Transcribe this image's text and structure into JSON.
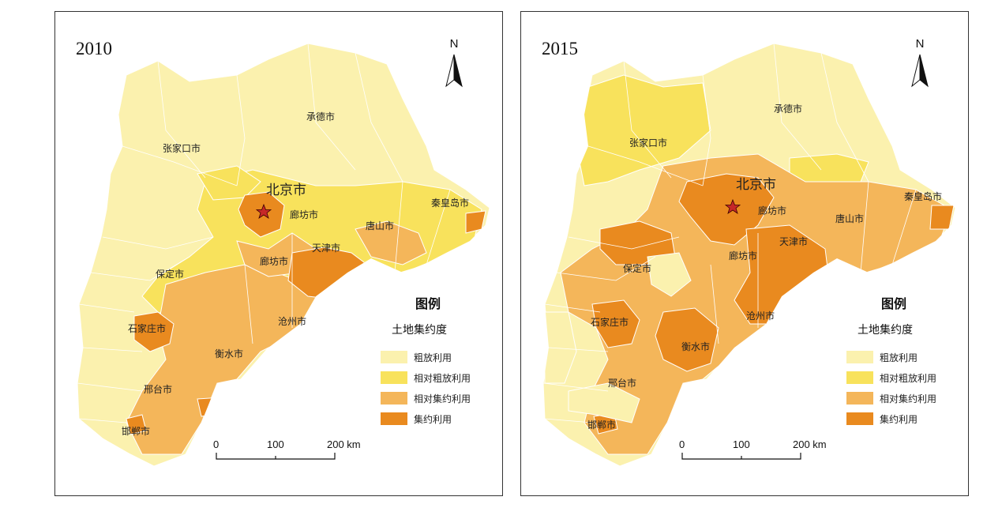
{
  "colors": {
    "extensive": "#FBF1AE",
    "rel_extensive": "#F8E25C",
    "rel_intensive": "#F4B65A",
    "intensive": "#E98A1F",
    "border": "#ffffff",
    "frame": "#333333"
  },
  "legend": {
    "title": "图例",
    "subtitle": "土地集约度",
    "items": [
      {
        "label": "粗放利用",
        "color": "#FBF1AE"
      },
      {
        "label": "相对粗放利用",
        "color": "#F8E25C"
      },
      {
        "label": "相对集约利用",
        "color": "#F4B65A"
      },
      {
        "label": "集约利用",
        "color": "#E98A1F"
      }
    ]
  },
  "scale": {
    "ticks": [
      "0",
      "100",
      "200 km"
    ]
  },
  "north_label": "N",
  "panels": [
    {
      "year": "2010",
      "cities": {
        "chengde": "承德市",
        "zhangjiakou": "张家口市",
        "beijing": "北京市",
        "langfang_north": "廊坊市",
        "qinhuangdao": "秦皇岛市",
        "tangshan": "唐山市",
        "tianjin": "天津市",
        "langfang_south": "廊坊市",
        "baoding": "保定市",
        "shijiazhuang": "石家庄市",
        "cangzhou": "沧州市",
        "hengshui": "衡水市",
        "xingtai": "邢台市",
        "handan": "邯郸市"
      }
    },
    {
      "year": "2015",
      "cities": {
        "chengde": "承德市",
        "zhangjiakou": "张家口市",
        "beijing": "北京市",
        "langfang_north": "廊坊市",
        "qinhuangdao": "秦皇岛市",
        "tangshan": "唐山市",
        "tianjin": "天津市",
        "langfang_south": "廊坊市",
        "baoding": "保定市",
        "shijiazhuang": "石家庄市",
        "cangzhou": "沧州市",
        "hengshui": "衡水市",
        "xingtai": "邢台市",
        "handan": "邯郸市"
      }
    }
  ]
}
